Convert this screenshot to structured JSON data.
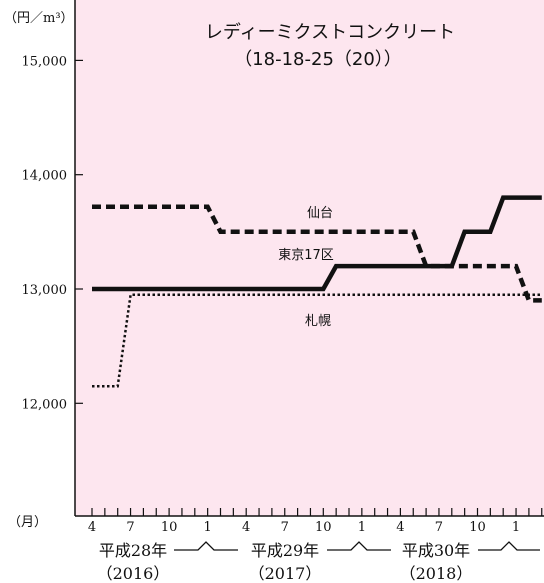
{
  "chart_data": {
    "type": "line",
    "title": "レディーミクストコンクリート",
    "subtitle": "（18-18-25（20））",
    "ylabel": "（円／m³）",
    "xlabel": "（月）",
    "ylim": [
      11000,
      15500
    ],
    "yticks": [
      {
        "value": 12000,
        "label": "12,000"
      },
      {
        "value": 13000,
        "label": "13,000"
      },
      {
        "value": 14000,
        "label": "14,000"
      },
      {
        "value": 15000,
        "label": "15,000"
      }
    ],
    "month_labels": [
      {
        "month": 4,
        "label": "4"
      },
      {
        "month": 7,
        "label": "7"
      },
      {
        "month": 10,
        "label": "10"
      },
      {
        "month": 13,
        "label": "1"
      },
      {
        "month": 16,
        "label": "4"
      },
      {
        "month": 19,
        "label": "7"
      },
      {
        "month": 22,
        "label": "10"
      },
      {
        "month": 25,
        "label": "1"
      },
      {
        "month": 28,
        "label": "4"
      },
      {
        "month": 31,
        "label": "7"
      },
      {
        "month": 34,
        "label": "10"
      },
      {
        "month": 37,
        "label": "1"
      }
    ],
    "years": [
      {
        "label": "平成28年",
        "sub": "（2016）",
        "start": 4,
        "end": 12
      },
      {
        "label": "平成29年",
        "sub": "（2017）",
        "start": 13,
        "end": 24
      },
      {
        "label": "平成30年",
        "sub": "（2018）",
        "start": 25,
        "end": 36
      }
    ],
    "series": [
      {
        "name": "東京17区",
        "style": "solid",
        "points": [
          [
            4,
            13000
          ],
          [
            22,
            13000
          ],
          [
            23,
            13200
          ],
          [
            32,
            13200
          ],
          [
            33,
            13500
          ],
          [
            35,
            13500
          ],
          [
            36,
            13800
          ],
          [
            39,
            13800
          ]
        ]
      },
      {
        "name": "仙台",
        "style": "dashed",
        "points": [
          [
            4,
            13720
          ],
          [
            13,
            13720
          ],
          [
            14,
            13500
          ],
          [
            29,
            13500
          ],
          [
            30,
            13200
          ],
          [
            37,
            13200
          ],
          [
            38,
            12900
          ],
          [
            39,
            12900
          ]
        ]
      },
      {
        "name": "札幌",
        "style": "dotted",
        "points": [
          [
            4,
            12150
          ],
          [
            6,
            12150
          ],
          [
            7,
            12950
          ],
          [
            39,
            12950
          ]
        ]
      }
    ]
  },
  "colors": {
    "plot_background": "#fde6ef",
    "line": "#111111"
  }
}
